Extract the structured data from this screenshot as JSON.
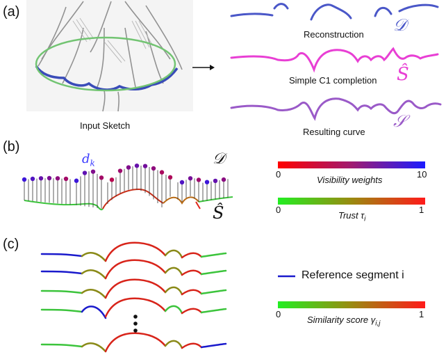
{
  "panels": {
    "a": {
      "label": "(a)",
      "input_caption": "Input Sketch",
      "rows": [
        {
          "caption": "Reconstruction",
          "symbol": "𝒟",
          "color": "#4a57c8"
        },
        {
          "caption": "Simple C1 completion",
          "symbol": "Ŝ",
          "color": "#e83fd4"
        },
        {
          "caption": "Resulting curve",
          "symbol": "𝒮",
          "color": "#9a5ac8"
        }
      ]
    },
    "b": {
      "label": "(b)",
      "point_label": "d",
      "point_subscript": "k",
      "top_symbol": "𝒟",
      "bottom_symbol": "Ŝ",
      "visibility_bar": {
        "min": "0",
        "max": "10",
        "label": "Visibility weights",
        "colors": [
          "#ff0000",
          "#1a1aff"
        ]
      },
      "trust_bar": {
        "min": "0",
        "max": "1",
        "label": "Trust τ",
        "subscript": "i",
        "colors": [
          "#22ee22",
          "#ff1a1a"
        ]
      }
    },
    "c": {
      "label": "(c)",
      "legend_reference": "Reference segment i",
      "reference_color": "#1a1acc",
      "similarity_bar": {
        "min": "0",
        "max": "1",
        "label": "Similarity score γ",
        "subscript": "i,j",
        "colors": [
          "#22ee22",
          "#ff1a1a"
        ]
      }
    }
  }
}
